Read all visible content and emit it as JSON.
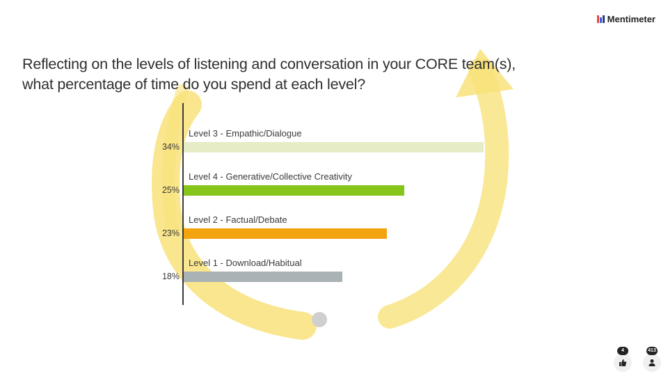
{
  "brand": {
    "name": "Mentimeter",
    "logo_colors": [
      "#e54b3c",
      "#3b5bdb",
      "#1e3a8a"
    ]
  },
  "question": {
    "line1": "Reflecting on the levels of listening and conversation in your CORE team(s),",
    "line2": "what percentage of time do you spend at each level?"
  },
  "background": {
    "arrow_color": "#f8e27a",
    "ball_color": "#cfcfcf"
  },
  "chart_data": {
    "type": "bar",
    "orientation": "horizontal",
    "categories": [
      "Level 3 - Empathic/Dialogue",
      "Level 4 - Generative/Collective Creativity",
      "Level 2 - Factual/Debate",
      "Level 1 - Download/Habitual"
    ],
    "values": [
      34,
      25,
      23,
      18
    ],
    "value_labels": [
      "34%",
      "25%",
      "23%",
      "18%"
    ],
    "colors": [
      "#e6ecc5",
      "#86c51a",
      "#f2a30f",
      "#a9b2b5"
    ],
    "xlim": [
      0,
      34
    ],
    "grid": false
  },
  "reactions": [
    {
      "icon": "thumbs-up-icon",
      "count": "4"
    },
    {
      "icon": "participants-icon",
      "count": "413"
    }
  ]
}
